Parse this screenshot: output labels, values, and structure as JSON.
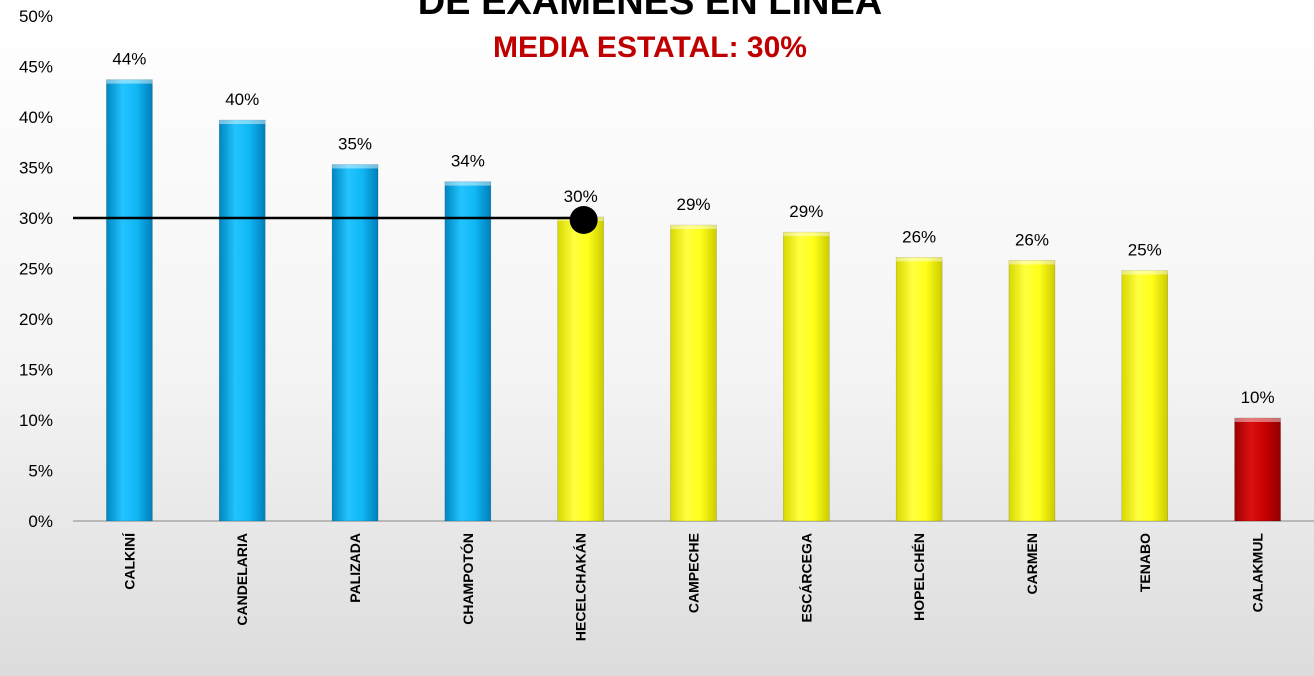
{
  "chart_data": {
    "type": "bar",
    "title": "DE EXÁMENES EN LÍNEA",
    "subtitle": "MEDIA ESTATAL: 30%",
    "categories": [
      "CALKINÍ",
      "CANDELARIA",
      "PALIZADA",
      "CHAMPOTÓN",
      "HECELCHAKÁN",
      "CAMPECHE",
      "ESCÁRCEGA",
      "HOPELCHÉN",
      "CARMEN",
      "TENABO",
      "CALAKMUL"
    ],
    "values": [
      44,
      40,
      35,
      34,
      30,
      29,
      29,
      26,
      26,
      25,
      10
    ],
    "value_labels": [
      "44%",
      "40%",
      "35%",
      "34%",
      "30%",
      "29%",
      "29%",
      "26%",
      "26%",
      "25%",
      "10%"
    ],
    "plotted_values": [
      43.7,
      39.7,
      35.3,
      33.6,
      30.1,
      29.3,
      28.6,
      26.1,
      25.8,
      24.8,
      10.2
    ],
    "bar_colors": [
      "#00b0f0",
      "#00b0f0",
      "#00b0f0",
      "#00b0f0",
      "#ffff00",
      "#ffff00",
      "#ffff00",
      "#ffff00",
      "#ffff00",
      "#ffff00",
      "#c00000"
    ],
    "ylim": [
      0,
      50
    ],
    "yticks": [
      "0%",
      "5%",
      "10%",
      "15%",
      "20%",
      "25%",
      "30%",
      "35%",
      "40%",
      "45%",
      "50%"
    ],
    "reference_line": {
      "value": 30,
      "color": "#000000"
    },
    "subtitle_color": "#c00000",
    "grid": false,
    "legend": "none"
  }
}
